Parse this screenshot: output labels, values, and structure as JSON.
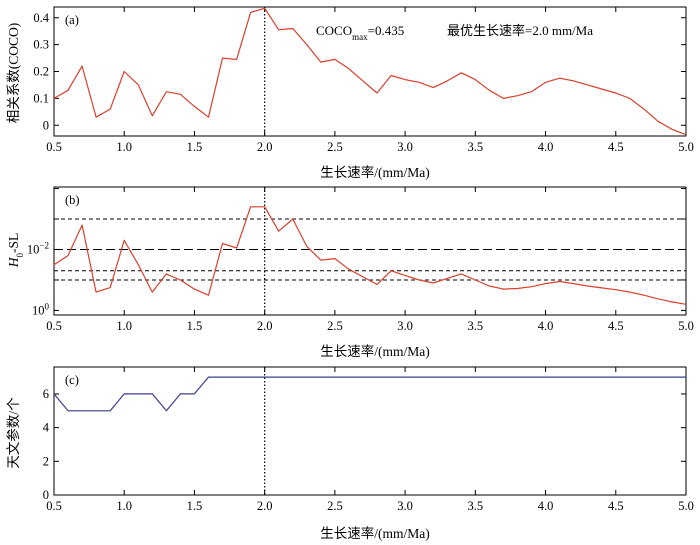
{
  "colors": {
    "line_red": "#d9402d",
    "line_blue": "#3b3f8c",
    "axis": "#000000",
    "ref_lines": "#000000"
  },
  "chart_data": [
    {
      "panel_label": "(a)",
      "type": "line",
      "xlabel": "生长速率/(mm/Ma)",
      "ylabel": "相关系数(COCO)",
      "xlim": [
        0.5,
        5.0
      ],
      "ylim": [
        -0.04,
        0.44
      ],
      "x_ticks": [
        0.5,
        1.0,
        1.5,
        2.0,
        2.5,
        3.0,
        3.5,
        4.0,
        4.5,
        5.0
      ],
      "x_tick_labels": [
        "0.5",
        "1.0",
        "1.5",
        "2.0",
        "2.5",
        "3.0",
        "3.5",
        "4.0",
        "4.5",
        "5.0"
      ],
      "y_ticks": [
        0,
        0.1,
        0.2,
        0.3,
        0.4
      ],
      "y_tick_labels": [
        "0",
        "0.1",
        "0.2",
        "0.3",
        "0.4"
      ],
      "annotation_coco_main": "COCO",
      "annotation_coco_sub": "max",
      "annotation_coco_value": "=0.435",
      "annotation_rate": "最优生长速率=2.0 mm/Ma",
      "vline_x": 2.0,
      "series": [
        {
          "color": "#d9402d",
          "x": [
            0.5,
            0.6,
            0.7,
            0.8,
            0.9,
            1.0,
            1.1,
            1.2,
            1.3,
            1.4,
            1.5,
            1.6,
            1.7,
            1.8,
            1.9,
            2.0,
            2.1,
            2.2,
            2.3,
            2.4,
            2.5,
            2.6,
            2.7,
            2.8,
            2.9,
            3.0,
            3.1,
            3.2,
            3.3,
            3.4,
            3.5,
            3.6,
            3.7,
            3.8,
            3.9,
            4.0,
            4.1,
            4.2,
            4.3,
            4.4,
            4.5,
            4.6,
            4.7,
            4.8,
            4.9,
            5.0
          ],
          "y": [
            0.1,
            0.13,
            0.22,
            0.03,
            0.06,
            0.2,
            0.15,
            0.035,
            0.125,
            0.115,
            0.07,
            0.03,
            0.25,
            0.245,
            0.42,
            0.435,
            0.355,
            0.36,
            0.3,
            0.235,
            0.245,
            0.21,
            0.165,
            0.12,
            0.185,
            0.17,
            0.16,
            0.14,
            0.165,
            0.195,
            0.17,
            0.13,
            0.1,
            0.11,
            0.125,
            0.16,
            0.175,
            0.165,
            0.15,
            0.135,
            0.12,
            0.1,
            0.06,
            0.015,
            -0.015,
            -0.035
          ]
        }
      ]
    },
    {
      "panel_label": "(b)",
      "type": "line",
      "xlabel": "生长速率/(mm/Ma)",
      "ylabel_main": "H",
      "ylabel_sub": "0",
      "ylabel_rest": "-SL",
      "y_scale": "log",
      "xlim": [
        0.5,
        5.0
      ],
      "ylim_log10": [
        0.15,
        -4.05
      ],
      "x_ticks": [
        0.5,
        1.0,
        1.5,
        2.0,
        2.5,
        3.0,
        3.5,
        4.0,
        4.5,
        5.0
      ],
      "x_tick_labels": [
        "0.5",
        "1.0",
        "1.5",
        "2.0",
        "2.5",
        "3.0",
        "3.5",
        "4.0",
        "4.5",
        "5.0"
      ],
      "y_ticks_log10": [
        0,
        -2
      ],
      "y_tick_base": "10",
      "y_tick_exp": [
        "0",
        "−2"
      ],
      "vline_x": 2.0,
      "ref_lines_log10": [
        {
          "value": -1.0,
          "style": "short-dash"
        },
        {
          "value": -1.3,
          "style": "short-dash"
        },
        {
          "value": -2.0,
          "style": "long-dash"
        },
        {
          "value": -3.0,
          "style": "short-dash"
        }
      ],
      "series": [
        {
          "color": "#d9402d",
          "x": [
            0.5,
            0.6,
            0.7,
            0.8,
            0.9,
            1.0,
            1.1,
            1.2,
            1.3,
            1.4,
            1.5,
            1.6,
            1.7,
            1.8,
            1.9,
            2.0,
            2.1,
            2.2,
            2.3,
            2.4,
            2.5,
            2.6,
            2.7,
            2.8,
            2.9,
            3.0,
            3.1,
            3.2,
            3.3,
            3.4,
            3.5,
            3.6,
            3.7,
            3.8,
            3.9,
            4.0,
            4.1,
            4.2,
            4.3,
            4.4,
            4.5,
            4.6,
            4.7,
            4.8,
            4.9,
            5.0
          ],
          "y_log10": [
            -1.5,
            -1.8,
            -2.8,
            -0.6,
            -0.75,
            -2.3,
            -1.5,
            -0.6,
            -1.2,
            -1.0,
            -0.7,
            -0.5,
            -2.2,
            -2.05,
            -3.4,
            -3.4,
            -2.6,
            -3.0,
            -2.1,
            -1.65,
            -1.7,
            -1.35,
            -1.1,
            -0.85,
            -1.3,
            -1.15,
            -1.0,
            -0.9,
            -1.05,
            -1.2,
            -1.0,
            -0.8,
            -0.7,
            -0.72,
            -0.78,
            -0.88,
            -0.95,
            -0.88,
            -0.8,
            -0.74,
            -0.68,
            -0.6,
            -0.5,
            -0.38,
            -0.28,
            -0.2
          ]
        }
      ]
    },
    {
      "panel_label": "(c)",
      "type": "line",
      "xlabel": "生长速率/(mm/Ma)",
      "ylabel": "天文参数/个",
      "xlim": [
        0.5,
        5.0
      ],
      "ylim": [
        0,
        7.6
      ],
      "x_ticks": [
        0.5,
        1.0,
        1.5,
        2.0,
        2.5,
        3.0,
        3.5,
        4.0,
        4.5,
        5.0
      ],
      "x_tick_labels": [
        "0.5",
        "1.0",
        "1.5",
        "2.0",
        "2.5",
        "3.0",
        "3.5",
        "4.0",
        "4.5",
        "5.0"
      ],
      "y_ticks": [
        0,
        2,
        4,
        6
      ],
      "y_tick_labels": [
        "0",
        "2",
        "4",
        "6"
      ],
      "vline_x": 2.0,
      "series": [
        {
          "color": "#3b3f8c",
          "x": [
            0.5,
            0.6,
            0.7,
            0.8,
            0.9,
            1.0,
            1.1,
            1.2,
            1.3,
            1.4,
            1.5,
            1.6,
            1.7,
            5.0
          ],
          "y": [
            6,
            5,
            5,
            5,
            5,
            6,
            6,
            6,
            5,
            6,
            6,
            7,
            7,
            7
          ]
        }
      ]
    }
  ]
}
